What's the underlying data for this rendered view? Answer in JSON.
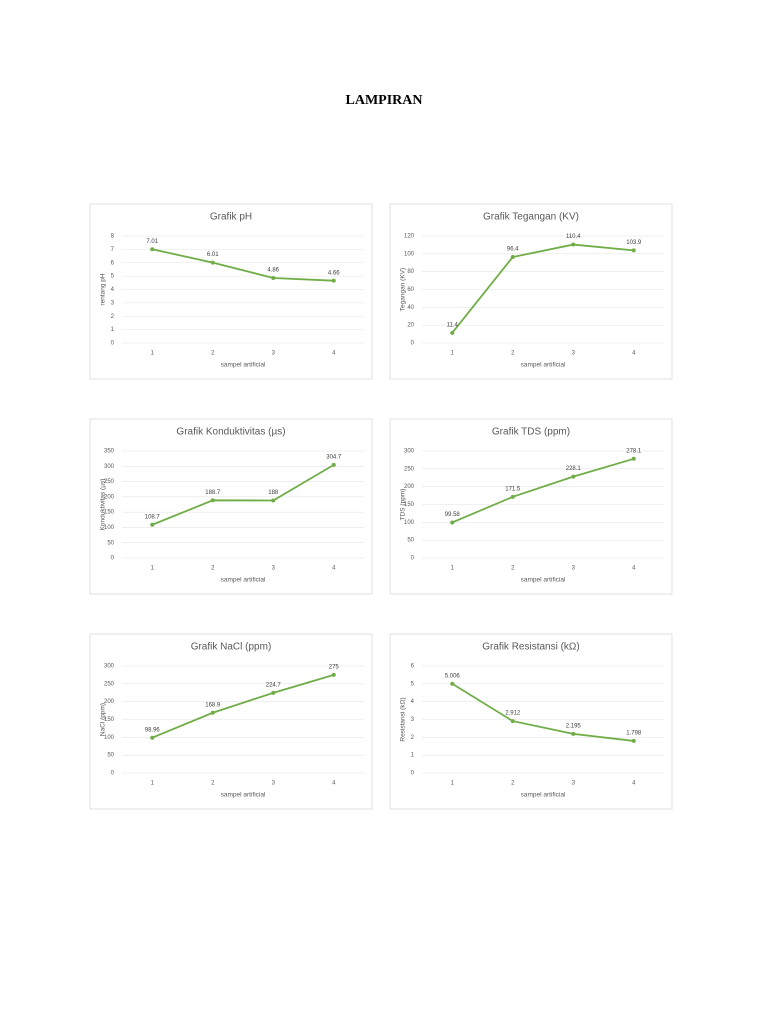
{
  "title": "LAMPIRAN",
  "chart_data": [
    {
      "type": "line",
      "title": "Grafik pH",
      "x_label": "sampel artificial",
      "y_label": "rentang pH",
      "categories": [
        "1",
        "2",
        "3",
        "4"
      ],
      "values": [
        7.01,
        6.01,
        4.86,
        4.66
      ],
      "color": "#70ad47",
      "ylim": [
        0,
        8
      ],
      "yticks": [
        0,
        1,
        2,
        3,
        4,
        5,
        6,
        7,
        8
      ],
      "grid": true
    },
    {
      "type": "line",
      "title": "Grafik Tegangan (KV)",
      "x_label": "sampel artificial",
      "y_label": "Tegangan (KV)",
      "categories": [
        "1",
        "2",
        "3",
        "4"
      ],
      "values": [
        11.4,
        96.4,
        110.4,
        103.9
      ],
      "color": "#70ad47",
      "ylim": [
        0,
        120
      ],
      "yticks": [
        0,
        20,
        40,
        60,
        80,
        100,
        120
      ],
      "grid": true
    },
    {
      "type": "line",
      "title": "Grafik Konduktivitas (µs)",
      "x_label": "sampel artificial",
      "y_label": "Konduktivitas (µs)",
      "categories": [
        "1",
        "2",
        "3",
        "4"
      ],
      "values": [
        108.7,
        188.7,
        188,
        304.7
      ],
      "color": "#70ad47",
      "ylim": [
        0,
        350
      ],
      "yticks": [
        0,
        50,
        100,
        150,
        200,
        250,
        300,
        350
      ],
      "grid": true
    },
    {
      "type": "line",
      "title": "Grafik TDS (ppm)",
      "x_label": "sampel artificial",
      "y_label": "TDS (ppm)",
      "categories": [
        "1",
        "2",
        "3",
        "4"
      ],
      "values": [
        99.58,
        171.5,
        228.1,
        278.1
      ],
      "color": "#70ad47",
      "ylim": [
        0,
        300
      ],
      "yticks": [
        0,
        50,
        100,
        150,
        200,
        250,
        300
      ],
      "grid": true
    },
    {
      "type": "line",
      "title": "Grafik NaCl (ppm)",
      "x_label": "sampel artificial",
      "y_label": "NaCl (ppm)",
      "categories": [
        "1",
        "2",
        "3",
        "4"
      ],
      "values": [
        98.96,
        168.9,
        224.7,
        275
      ],
      "color": "#70ad47",
      "ylim": [
        0,
        300
      ],
      "yticks": [
        0,
        50,
        100,
        150,
        200,
        250,
        300
      ],
      "grid": true
    },
    {
      "type": "line",
      "title": "Grafik Resistansi (kΩ)",
      "x_label": "sampel artificial",
      "y_label": "Resistansi (kΩ)",
      "categories": [
        "1",
        "2",
        "3",
        "4"
      ],
      "values": [
        5.006,
        2.912,
        2.195,
        1.798
      ],
      "color": "#70ad47",
      "ylim": [
        0,
        6
      ],
      "yticks": [
        0,
        1,
        2,
        3,
        4,
        5,
        6
      ],
      "grid": true
    }
  ]
}
